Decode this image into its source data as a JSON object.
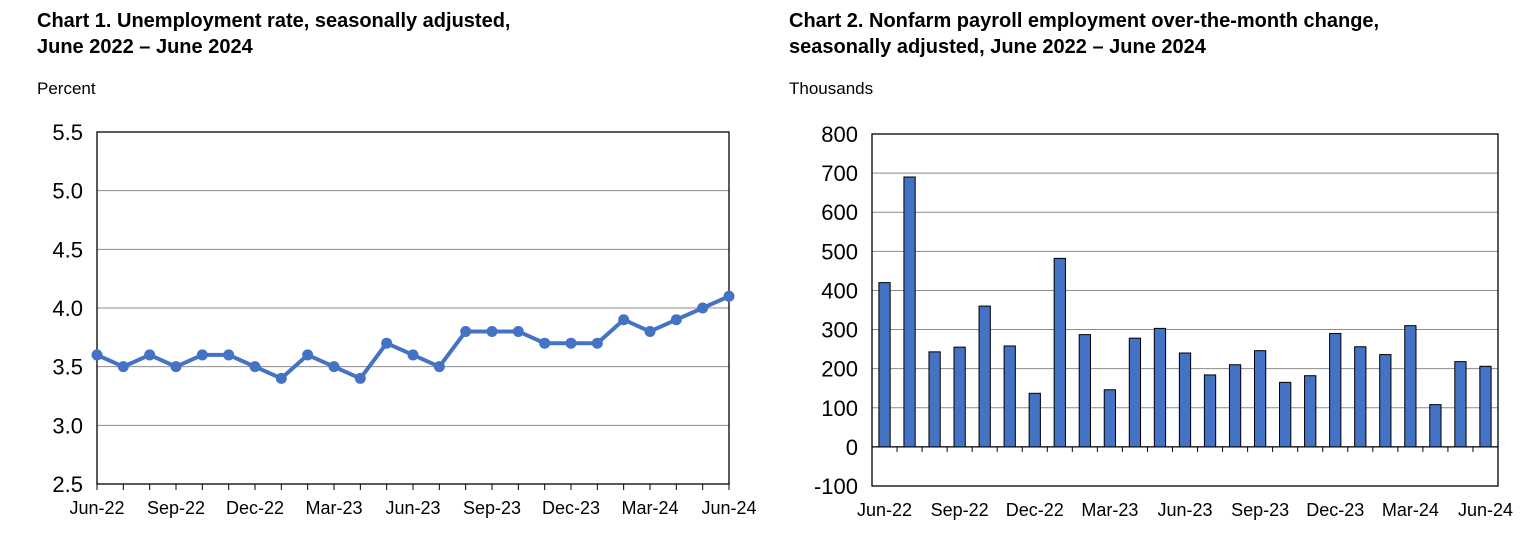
{
  "chart_data": [
    {
      "type": "line",
      "title_line1": "Chart 1. Unemployment rate, seasonally adjusted,",
      "title_line2": "June 2022 – June 2024",
      "ylabel": "Percent",
      "xlabel": "",
      "ylim": [
        2.5,
        5.5
      ],
      "yticks": [
        "5.5",
        "5.0",
        "4.5",
        "4.0",
        "3.5",
        "3.0",
        "2.5"
      ],
      "ytick_values": [
        5.5,
        5.0,
        4.5,
        4.0,
        3.5,
        3.0,
        2.5
      ],
      "xtick_labels": [
        "Jun-22",
        "Sep-22",
        "Dec-22",
        "Mar-23",
        "Jun-23",
        "Sep-23",
        "Dec-23",
        "Mar-24",
        "Jun-24"
      ],
      "grid": true,
      "color": "#4472C4",
      "series": [
        {
          "values": [
            3.6,
            3.5,
            3.6,
            3.5,
            3.6,
            3.6,
            3.5,
            3.4,
            3.6,
            3.5,
            3.4,
            3.7,
            3.6,
            3.5,
            3.8,
            3.8,
            3.8,
            3.7,
            3.7,
            3.7,
            3.9,
            3.8,
            3.9,
            4.0,
            4.1
          ]
        }
      ]
    },
    {
      "type": "bar",
      "title_line1": "Chart 2. Nonfarm payroll employment over-the-month change,",
      "title_line2": "seasonally adjusted, June 2022 – June 2024",
      "ylabel": "Thousands",
      "xlabel": "",
      "ylim": [
        -100,
        800
      ],
      "yticks": [
        "800",
        "700",
        "600",
        "500",
        "400",
        "300",
        "200",
        "100",
        "0",
        "-100"
      ],
      "ytick_values": [
        800,
        700,
        600,
        500,
        400,
        300,
        200,
        100,
        0,
        -100
      ],
      "xtick_labels": [
        "Jun-22",
        "Sep-22",
        "Dec-22",
        "Mar-23",
        "Jun-23",
        "Sep-23",
        "Dec-23",
        "Mar-24",
        "Jun-24"
      ],
      "grid": true,
      "color": "#4472C4",
      "series": [
        {
          "values": [
            420,
            690,
            243,
            255,
            360,
            258,
            137,
            482,
            287,
            146,
            278,
            303,
            240,
            184,
            210,
            246,
            165,
            182,
            290,
            256,
            236,
            310,
            108,
            218,
            206
          ]
        }
      ]
    }
  ]
}
